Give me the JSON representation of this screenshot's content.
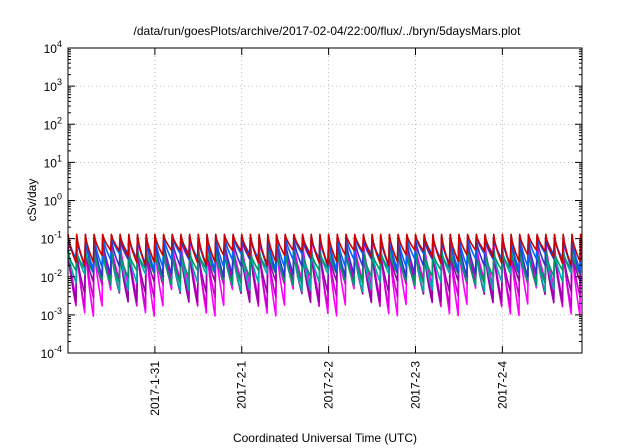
{
  "chart_data": {
    "type": "line",
    "title": "/data/run/goesPlots/archive/2017-02-04/22:00/flux/../bryn/5daysMars.plot",
    "xlabel": "Coordinated Universal Time (UTC)",
    "ylabel": "cSv/day",
    "y_scale": "log",
    "ylim": [
      0.0001,
      10000
    ],
    "xlim": [
      "2017-01-30 00:00",
      "2017-02-04 22:00"
    ],
    "x_ticks": [
      "2017-1-31",
      "2017-2-1",
      "2017-2-2",
      "2017-2-3",
      "2017-2-4"
    ],
    "y_ticks": [
      {
        "base": "10",
        "exp": "-4"
      },
      {
        "base": "10",
        "exp": "-3"
      },
      {
        "base": "10",
        "exp": "-2"
      },
      {
        "base": "10",
        "exp": "-1"
      },
      {
        "base": "10",
        "exp": "0"
      },
      {
        "base": "10",
        "exp": "1"
      },
      {
        "base": "10",
        "exp": "2"
      },
      {
        "base": "10",
        "exp": "3"
      },
      {
        "base": "10",
        "exp": "4"
      }
    ],
    "grid": true,
    "legend": "none",
    "sawtooth_period_hours": 2.4,
    "series": [
      {
        "color": "#ff00ff",
        "peak": 0.08,
        "trough": 0.0009
      },
      {
        "color": "#cc00cc",
        "peak": 0.06,
        "trough": 0.0015
      },
      {
        "color": "#9900aa",
        "peak": 0.05,
        "trough": 0.002
      },
      {
        "color": "#00aaaa",
        "peak": 0.05,
        "trough": 0.004
      },
      {
        "color": "#009966",
        "peak": 0.045,
        "trough": 0.006
      },
      {
        "color": "#3333cc",
        "peak": 0.1,
        "trough": 0.01
      },
      {
        "color": "#0066ff",
        "peak": 0.12,
        "trough": 0.015
      },
      {
        "color": "#cc0000",
        "peak": 0.13,
        "trough": 0.02
      }
    ]
  }
}
